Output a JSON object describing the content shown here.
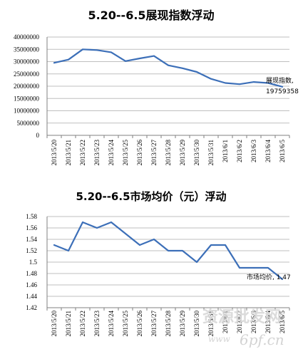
{
  "colors": {
    "line": "#3c6fb8",
    "grid": "#bfbfbf",
    "axis": "#808080",
    "watermark": "#d4d4d4"
  },
  "watermark": {
    "text_cn": "资源批发网",
    "url": "6pf.cn",
    "www": "www"
  },
  "chart_data": [
    {
      "type": "line",
      "title": "5.20--6.5展现指数浮动",
      "categories": [
        "2013/5/20",
        "2013/5/21",
        "2013/5/22",
        "2013/5/23",
        "2013/5/24",
        "2013/5/25",
        "2013/5/26",
        "2013/5/27",
        "2013/5/28",
        "2013/5/29",
        "2013/5/30",
        "2013/5/31",
        "2013/6/1",
        "2013/6/2",
        "2013/6/3",
        "2013/6/4",
        "2013/6/5"
      ],
      "yticks": [
        "40000000",
        "35000000",
        "30000000",
        "25000000",
        "20000000",
        "15000000",
        "10000000",
        "5000000",
        "0"
      ],
      "ylim": [
        0,
        40000000
      ],
      "series": [
        {
          "values": [
            29500000,
            30800000,
            35000000,
            34700000,
            33800000,
            30200000,
            31300000,
            32300000,
            28500000,
            27300000,
            25800000,
            23000000,
            21300000,
            20800000,
            21700000,
            21300000,
            19759358
          ]
        }
      ],
      "annotation": {
        "line1": "展现指数,",
        "line2": "19759358"
      },
      "grid": true
    },
    {
      "type": "line",
      "title": "5.20--6.5市场均价（元）浮动",
      "categories": [
        "2013/5/20",
        "2013/5/21",
        "2013/5/22",
        "2013/5/23",
        "2013/5/24",
        "2013/5/25",
        "2013/5/26",
        "2013/5/27",
        "2013/5/28",
        "2013/5/29",
        "2013/5/30",
        "2013/5/31",
        "2013/6/1",
        "2013/6/2",
        "2013/6/3",
        "2013/6/4",
        "2013/6/5"
      ],
      "yticks": [
        "1.58",
        "1.56",
        "1.54",
        "1.52",
        "1.5",
        "1.48",
        "1.46",
        "1.44",
        "1.42"
      ],
      "ylim": [
        1.42,
        1.58
      ],
      "series": [
        {
          "values": [
            1.53,
            1.52,
            1.57,
            1.56,
            1.57,
            1.55,
            1.53,
            1.54,
            1.52,
            1.52,
            1.5,
            1.53,
            1.53,
            1.49,
            1.49,
            1.49,
            1.47
          ]
        }
      ],
      "annotation": {
        "line1": "市场均价, 1.47",
        "line2": ""
      },
      "grid": true
    }
  ]
}
